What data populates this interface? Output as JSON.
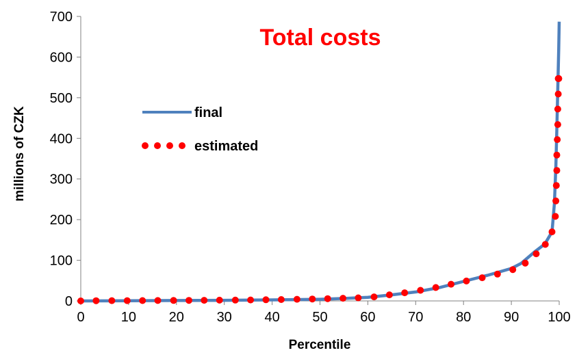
{
  "chart_data": {
    "type": "line",
    "title": "Total costs",
    "xlabel": "Percentile",
    "ylabel": "millions of CZK",
    "xlim": [
      0,
      100
    ],
    "ylim": [
      0,
      700
    ],
    "xticks": [
      0,
      10,
      20,
      30,
      40,
      50,
      60,
      70,
      80,
      90,
      100
    ],
    "yticks": [
      0,
      100,
      200,
      300,
      400,
      500,
      600,
      700
    ],
    "grid": false,
    "legend_position": "upper-left",
    "series": [
      {
        "name": "final",
        "style": "solid",
        "color": "#4f81bd",
        "x": [
          0,
          10,
          20,
          30,
          40,
          50,
          55,
          60,
          65,
          70,
          75,
          80,
          85,
          90,
          92,
          95,
          97,
          98.5,
          99,
          99.3,
          99.5,
          99.7,
          99.9,
          100
        ],
        "y": [
          0,
          0.5,
          1,
          1.5,
          2.5,
          4,
          6,
          9,
          15,
          22,
          33,
          48,
          63,
          80,
          92,
          122,
          140,
          170,
          240,
          330,
          420,
          520,
          620,
          687
        ]
      },
      {
        "name": "estimated",
        "style": "dotted",
        "color": "#ff0000",
        "x": [
          0,
          3.2,
          6.5,
          9.7,
          12.9,
          16.1,
          19.4,
          22.6,
          25.8,
          29,
          32.3,
          35.5,
          38.7,
          41.9,
          45.2,
          48.4,
          51.6,
          54.8,
          58,
          61.3,
          64.5,
          67.7,
          71,
          74.2,
          77.4,
          80.6,
          83.9,
          87.1,
          90.3,
          92.9,
          95.2,
          97.1,
          98.5,
          99.2,
          99.3,
          99.4,
          99.5,
          99.5,
          99.6,
          99.7,
          99.7,
          99.8,
          99.8,
          99.9,
          99.9
        ],
        "y": [
          0,
          0.5,
          0.6,
          0.7,
          0.8,
          1,
          1.1,
          1.3,
          1.5,
          1.8,
          2,
          2.4,
          2.8,
          3.3,
          4,
          4.7,
          5.5,
          6.5,
          7.5,
          10,
          15,
          20,
          26,
          33,
          41,
          49,
          57,
          66,
          77,
          93,
          116,
          139,
          170,
          208,
          246,
          284,
          321,
          359,
          397,
          434,
          472,
          509,
          547,
          547,
          547
        ]
      }
    ]
  }
}
